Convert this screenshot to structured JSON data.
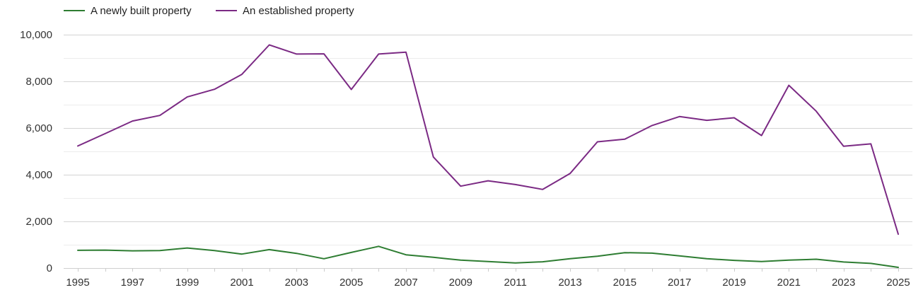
{
  "chart_data": {
    "type": "line",
    "title": "",
    "xlabel": "",
    "ylabel": "",
    "x": [
      1995,
      1996,
      1997,
      1998,
      1999,
      2000,
      2001,
      2002,
      2003,
      2004,
      2005,
      2006,
      2007,
      2008,
      2009,
      2010,
      2011,
      2012,
      2013,
      2014,
      2015,
      2016,
      2017,
      2018,
      2019,
      2020,
      2021,
      2022,
      2023,
      2024,
      2025
    ],
    "x_ticks": [
      "1995",
      "1997",
      "1999",
      "2001",
      "2003",
      "2005",
      "2007",
      "2009",
      "2011",
      "2013",
      "2015",
      "2017",
      "2019",
      "2021",
      "2023",
      "2025"
    ],
    "y_ticks": [
      "0",
      "2,000",
      "4,000",
      "6,000",
      "8,000",
      "10,000"
    ],
    "ylim": [
      0,
      10000
    ],
    "grid": true,
    "legend_position": "top-left",
    "series": [
      {
        "name": "A newly built property",
        "color": "#2e7d32",
        "values": [
          760,
          770,
          740,
          750,
          860,
          750,
          600,
          790,
          630,
          400,
          670,
          930,
          570,
          460,
          340,
          280,
          220,
          270,
          400,
          510,
          660,
          640,
          520,
          400,
          330,
          280,
          340,
          380,
          260,
          200,
          30
        ]
      },
      {
        "name": "An established property",
        "color": "#7b2a84",
        "values": [
          5230,
          5760,
          6300,
          6540,
          7330,
          7660,
          8300,
          9560,
          9170,
          9180,
          7650,
          9170,
          9250,
          4760,
          3510,
          3740,
          3580,
          3370,
          4050,
          5410,
          5520,
          6110,
          6490,
          6330,
          6440,
          5680,
          7830,
          6720,
          5220,
          5320,
          1450
        ]
      }
    ]
  }
}
